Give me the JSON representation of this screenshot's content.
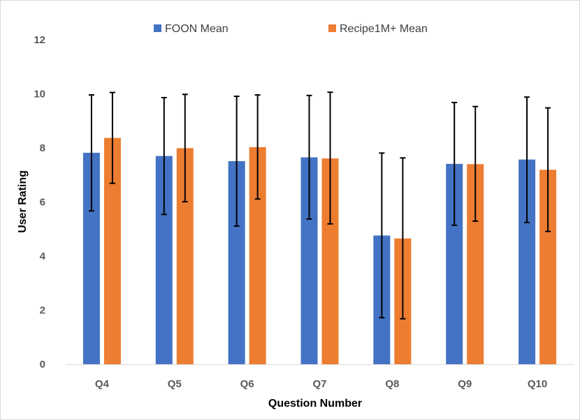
{
  "chart_data": {
    "type": "bar",
    "title": "",
    "xlabel": "Question Number",
    "ylabel": "User Rating",
    "ylim": [
      0,
      12
    ],
    "yticks": [
      0,
      2,
      4,
      6,
      8,
      10,
      12
    ],
    "grid": false,
    "legend_position": "top",
    "categories": [
      "Q4",
      "Q5",
      "Q6",
      "Q7",
      "Q8",
      "Q9",
      "Q10"
    ],
    "series": [
      {
        "name": "FOON Mean",
        "color": "#4472c4",
        "values": [
          7.82,
          7.7,
          7.51,
          7.65,
          4.76,
          7.41,
          7.57
        ],
        "error_low": [
          5.67,
          5.54,
          5.11,
          5.37,
          1.72,
          5.14,
          5.24
        ],
        "error_high": [
          9.96,
          9.86,
          9.91,
          9.94,
          7.81,
          9.68,
          9.88
        ]
      },
      {
        "name": "Recipe1M+ Mean",
        "color": "#ed7d31",
        "values": [
          8.37,
          7.99,
          8.03,
          7.61,
          4.65,
          7.4,
          7.19
        ],
        "error_low": [
          6.69,
          6.01,
          6.11,
          5.19,
          1.68,
          5.29,
          4.91
        ],
        "error_high": [
          10.05,
          9.98,
          9.96,
          10.06,
          7.63,
          9.53,
          9.48
        ]
      }
    ]
  }
}
